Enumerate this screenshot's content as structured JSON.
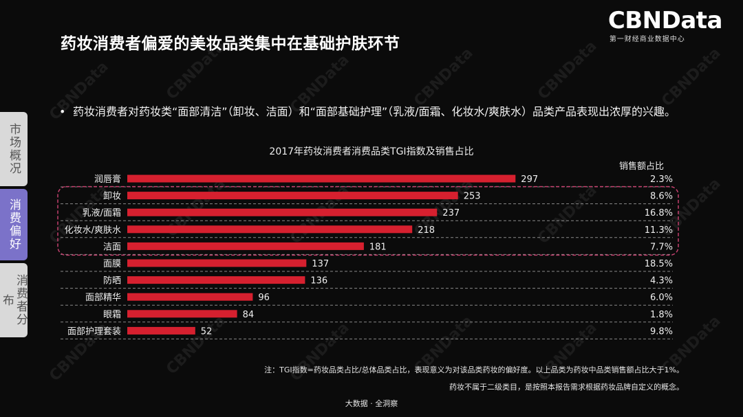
{
  "header": {
    "title": "药妆消费者偏爱的美妆品类集中在基础护肤环节",
    "brand_name": "CBNData",
    "brand_sub": "第一财经商业数据中心"
  },
  "side_tabs": [
    {
      "label": "市场概况",
      "active": false
    },
    {
      "label": "消费偏好",
      "active": true
    },
    {
      "label": "消费者分布",
      "active": false
    }
  ],
  "bullet": {
    "dot": "•",
    "text": "药妆消费者对药妆类“面部清洁”（卸妆、洁面）和“面部基础护理”（乳液/面霜、化妆水/爽肤水）品类产品表现出浓厚的兴趣。"
  },
  "watermark": "CBNData",
  "chart_data": {
    "type": "bar",
    "orientation": "horizontal",
    "title": "2017年药妆消费者消费品类TGI指数及销售占比",
    "share_label": "销售额占比",
    "categories": [
      "润唇膏",
      "卸妆",
      "乳液/面霜",
      "化妆水/爽肤水",
      "洁面",
      "面膜",
      "防晒",
      "面部精华",
      "眼霜",
      "面部护理套装"
    ],
    "series": [
      {
        "values": [
          297,
          253,
          237,
          218,
          181,
          137,
          136,
          96,
          84,
          52
        ]
      }
    ],
    "share": [
      "2.3%",
      "8.6%",
      "16.8%",
      "11.3%",
      "7.7%",
      "18.5%",
      "4.3%",
      "6.0%",
      "1.8%",
      "9.8%"
    ],
    "xlim": [
      0,
      300
    ],
    "bar_color": "#d6202f",
    "highlight": {
      "from_index": 1,
      "to_index": 4,
      "color": "#c3406e"
    },
    "grid": false
  },
  "notes": {
    "note1": "注：TGI指数=药妆品类占比/总体品类占比，表现意义为对该品类药妆的偏好度。以上品类为药妆中品类销售额占比大于1%。",
    "note2": "药妆不属于二级类目，是按照本报告需求根据药妆品牌自定义的概念。",
    "footer": "大数据 · 全洞察"
  }
}
